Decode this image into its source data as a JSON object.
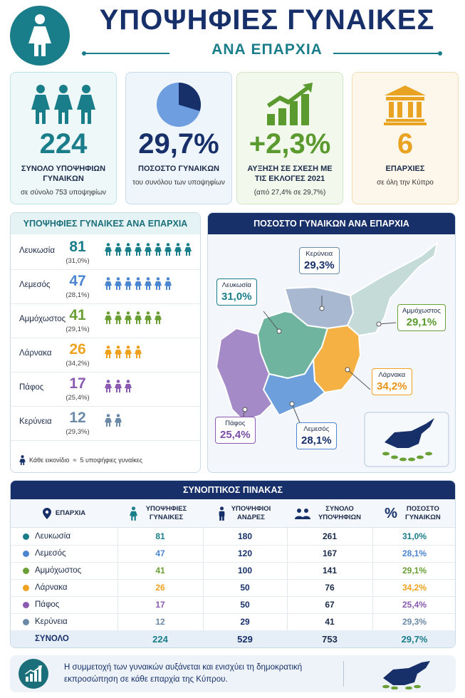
{
  "header": {
    "title": "ΥΠΟΨΗΦΙΕΣ ΓΥΝΑΙΚΕΣ",
    "subtitle": "ΑΝΑ ΕΠΑΡΧΙΑ",
    "icon": "woman-icon"
  },
  "stats": [
    {
      "value": "224",
      "label": "ΣΥΝΟΛΟ ΥΠΟΨΗΦΙΩΝ ΓΥΝΑΙΚΩΝ",
      "sub": "σε σύνολο 753 υποψηφίων",
      "color": "#1a7d8a",
      "icon": "three-women-icon"
    },
    {
      "value": "29,7%",
      "label": "ΠΟΣΟΣΤΟ ΓΥΝΑΙΚΩΝ",
      "sub": "του συνόλου των υποψηφίων",
      "color": "#17306a",
      "icon": "pie-chart-icon",
      "fraction": 0.297
    },
    {
      "value": "+2,3%",
      "label": "ΑΥΞΗΣΗ ΣΕ ΣΧΕΣΗ ΜΕ ΤΙΣ ΕΚΛΟΓΕΣ 2021",
      "sub": "(από 27,4% σε 29,7%)",
      "color": "#5a9a2f",
      "icon": "rising-bars-icon"
    },
    {
      "value": "6",
      "label": "ΕΠΑΡΧΙΕΣ",
      "sub": "σε όλη την Κύπρο",
      "color": "#e8a322",
      "icon": "building-icon"
    }
  ],
  "provinces_panel": {
    "title": "ΥΠΟΨΗΦΙΕΣ ΓΥΝΑΙΚΕΣ ΑΝΑ ΕΠΑΡΧΙΑ",
    "rows": [
      {
        "name": "Λευκωσία",
        "count": "81",
        "pct": "(31,0%)",
        "color": "#1a7d8a",
        "icons": 9
      },
      {
        "name": "Λεμεσός",
        "count": "47",
        "pct": "(28,1%)",
        "color": "#4d86d0",
        "icons": 7
      },
      {
        "name": "Αμμόχωστος",
        "count": "41",
        "pct": "(29,1%)",
        "color": "#6a9f35",
        "icons": 6
      },
      {
        "name": "Λάρνακα",
        "count": "26",
        "pct": "(34,2%)",
        "color": "#eea21f",
        "icons": 4
      },
      {
        "name": "Πάφος",
        "count": "17",
        "pct": "(25,4%)",
        "color": "#8a5bb0",
        "icons": 3
      },
      {
        "name": "Κερύνεια",
        "count": "12",
        "pct": "(29,3%)",
        "color": "#6b8aa8",
        "icons": 2
      }
    ],
    "note_prefix": "Κάθε εικονίδιο",
    "note_eq": "≈",
    "note_suffix": "5 υποψήφιες γυναίκες"
  },
  "map_panel": {
    "title": "ΠΟΣΟΣΤΟ ΓΥΝΑΙΚΩΝ ΑΝΑ ΕΠΑΡΧΙΑ",
    "labels": [
      {
        "name": "Κερύνεια",
        "value": "29,3%",
        "color": "#6b8aa8"
      },
      {
        "name": "Λευκωσία",
        "value": "31,0%",
        "color": "#1a7d8a"
      },
      {
        "name": "Αμμόχωστος",
        "value": "29,1%",
        "color": "#6a9f35"
      },
      {
        "name": "Λάρνακα",
        "value": "34,2%",
        "color": "#eea21f"
      },
      {
        "name": "Πάφος",
        "value": "25,4%",
        "color": "#8a5bb0"
      },
      {
        "name": "Λεμεσός",
        "value": "28,1%",
        "color": "#4d86d0"
      }
    ]
  },
  "table": {
    "title": "ΣΥΝΟΠΤΙΚΟΣ ΠΙΝΑΚΑΣ",
    "headers": [
      "ΕΠΑΡΧΙΑ",
      "ΥΠΟΨΗΦΙΕΣ ΓΥΝΑΙΚΕΣ",
      "ΥΠΟΨΗΦΙΟΙ ΑΝΔΡΕΣ",
      "ΣΥΝΟΛΟ ΥΠΟΨΗΦΙΩΝ",
      "ΠΟΣΟΣΤΟ ΓΥΝΑΙΚΩΝ"
    ],
    "rows": [
      {
        "name": "Λευκωσία",
        "women": "81",
        "men": "180",
        "total": "261",
        "pct": "31,0%",
        "color": "#1a7d8a"
      },
      {
        "name": "Λεμεσός",
        "women": "47",
        "men": "120",
        "total": "167",
        "pct": "28,1%",
        "color": "#4d86d0"
      },
      {
        "name": "Αμμόχωστος",
        "women": "41",
        "men": "100",
        "total": "141",
        "pct": "29,1%",
        "color": "#6a9f35"
      },
      {
        "name": "Λάρνακα",
        "women": "26",
        "men": "50",
        "total": "76",
        "pct": "34,2%",
        "color": "#eea21f"
      },
      {
        "name": "Πάφος",
        "women": "17",
        "men": "50",
        "total": "67",
        "pct": "25,4%",
        "color": "#8a5bb0"
      },
      {
        "name": "Κερύνεια",
        "women": "12",
        "men": "29",
        "total": "41",
        "pct": "29,3%",
        "color": "#6b8aa8"
      }
    ],
    "total": {
      "name": "ΣΥΝΟΛΟ",
      "women": "224",
      "men": "529",
      "total": "753",
      "pct": "29,7%"
    }
  },
  "footer": {
    "text": "Η συμμετοχή των γυναικών αυξάνεται και ενισχύει τη δημοκρατική εκπροσώπηση σε κάθε επαρχία της Κύπρου."
  }
}
